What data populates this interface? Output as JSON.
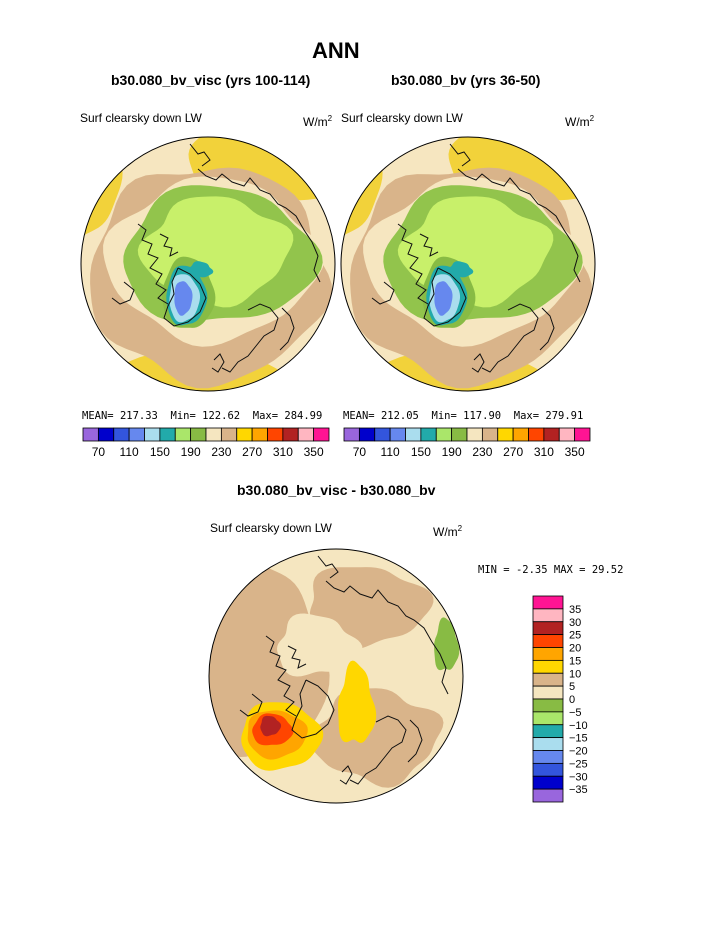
{
  "page_title": "ANN",
  "colors": {
    "ocean_base": "#F6E6C0",
    "coast": "#111111",
    "warm_band": "#F2D23A",
    "tan_band": "#D9B48A",
    "green_band": "#92C44C",
    "light_green": "#C8F06A"
  },
  "chart_data": [
    {
      "type": "heatmap",
      "projection": "north-polar-stereographic",
      "case_title": "b30.080_bv_visc (yrs 100-114)",
      "variable": "Surf clearsky down LW",
      "units_base": "W/m",
      "units_exp": "2",
      "stats": {
        "mean": "217.33",
        "min": "122.62",
        "max": "284.99"
      },
      "stats_labels": {
        "mean": "MEAN=",
        "min": "Min=",
        "max": "Max="
      },
      "colorbar": {
        "levels": [
          70,
          90,
          110,
          130,
          150,
          170,
          190,
          210,
          230,
          250,
          270,
          290,
          310,
          330,
          350
        ],
        "tick_labels": [
          "70",
          "110",
          "150",
          "190",
          "230",
          "270",
          "310",
          "350"
        ],
        "colors": [
          "#9966DD",
          "#0000CC",
          "#3355DD",
          "#6688EE",
          "#AADDEE",
          "#22AAAA",
          "#AAE66A",
          "#88BB44",
          "#F5E6C0",
          "#D9B48A",
          "#FFD700",
          "#FFA500",
          "#FF4500",
          "#B22222",
          "#FFB6C1",
          "#FF1493"
        ]
      }
    },
    {
      "type": "heatmap",
      "projection": "north-polar-stereographic",
      "case_title": "b30.080_bv (yrs 36-50)",
      "variable": "Surf clearsky down LW",
      "units_base": "W/m",
      "units_exp": "2",
      "stats": {
        "mean": "212.05",
        "min": "117.90",
        "max": "279.91"
      },
      "stats_labels": {
        "mean": "MEAN=",
        "min": "Min=",
        "max": "Max="
      },
      "colorbar": {
        "levels": [
          70,
          90,
          110,
          130,
          150,
          170,
          190,
          210,
          230,
          250,
          270,
          290,
          310,
          330,
          350
        ],
        "tick_labels": [
          "70",
          "110",
          "150",
          "190",
          "230",
          "270",
          "310",
          "350"
        ],
        "colors": [
          "#9966DD",
          "#0000CC",
          "#3355DD",
          "#6688EE",
          "#AADDEE",
          "#22AAAA",
          "#AAE66A",
          "#88BB44",
          "#F5E6C0",
          "#D9B48A",
          "#FFD700",
          "#FFA500",
          "#FF4500",
          "#B22222",
          "#FFB6C1",
          "#FF1493"
        ]
      }
    },
    {
      "type": "heatmap",
      "projection": "north-polar-stereographic",
      "case_title": "b30.080_bv_visc - b30.080_bv",
      "variable": "Surf clearsky down LW",
      "units_base": "W/m",
      "units_exp": "2",
      "stats": {
        "min": "-2.35",
        "max": "29.52"
      },
      "stats_labels": {
        "min": "MIN =",
        "max": "MAX ="
      },
      "colorbar": {
        "levels": [
          35,
          30,
          25,
          20,
          15,
          10,
          5,
          0,
          -5,
          -10,
          -15,
          -20,
          -25,
          -30,
          -35
        ],
        "tick_labels": [
          "35",
          "30",
          "25",
          "20",
          "15",
          "10",
          "5",
          "0",
          "−5",
          "−10",
          "−15",
          "−20",
          "−25",
          "−30",
          "−35"
        ],
        "colors": [
          "#FF1493",
          "#FFB6C1",
          "#B22222",
          "#FF4500",
          "#FFA500",
          "#FFD700",
          "#D9B48A",
          "#F5E6C0",
          "#88BB44",
          "#AAE66A",
          "#22AAAA",
          "#AADDEE",
          "#6688EE",
          "#3355DD",
          "#0000CC",
          "#9966DD"
        ]
      }
    }
  ]
}
